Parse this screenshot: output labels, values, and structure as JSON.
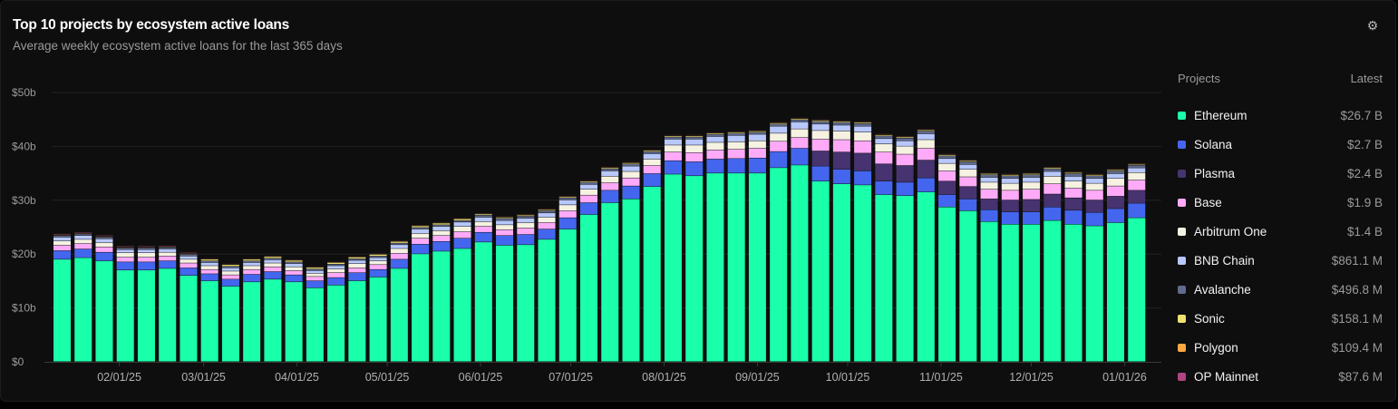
{
  "header": {
    "title": "Top 10 projects by ecosystem active loans",
    "subtitle": "Average weekly ecosystem active loans for the last 365 days",
    "settings_icon": "gear-icon"
  },
  "legend": {
    "col_projects": "Projects",
    "col_latest": "Latest",
    "items": [
      {
        "name": "Ethereum",
        "latest": "$26.7 B",
        "color": "#1affaa"
      },
      {
        "name": "Solana",
        "latest": "$2.7 B",
        "color": "#4466ee"
      },
      {
        "name": "Plasma",
        "latest": "$2.4 B",
        "color": "#46336f"
      },
      {
        "name": "Base",
        "latest": "$1.9 B",
        "color": "#ffaaf8"
      },
      {
        "name": "Arbitrum One",
        "latest": "$1.4 B",
        "color": "#f5f2e2"
      },
      {
        "name": "BNB Chain",
        "latest": "$861.1 M",
        "color": "#b8c8ff"
      },
      {
        "name": "Avalanche",
        "latest": "$496.8 M",
        "color": "#5f6b8e"
      },
      {
        "name": "Sonic",
        "latest": "$158.1 M",
        "color": "#f0e070"
      },
      {
        "name": "Polygon",
        "latest": "$109.4 M",
        "color": "#ffa840"
      },
      {
        "name": "OP Mainnet",
        "latest": "$87.6 M",
        "color": "#b0447e"
      }
    ]
  },
  "chart_data": {
    "type": "bar",
    "stacked": true,
    "title": "Top 10 projects by ecosystem active loans",
    "subtitle": "Average weekly ecosystem active loans for the last 365 days",
    "unit": "USD billions",
    "first_week": "2025-01-13",
    "interval": "weekly",
    "bar_count": 52,
    "ylim": [
      0,
      50
    ],
    "yticks": [
      {
        "v": 0,
        "label": "$0"
      },
      {
        "v": 10,
        "label": "$10b"
      },
      {
        "v": 20,
        "label": "$20b"
      },
      {
        "v": 30,
        "label": "$30b"
      },
      {
        "v": 40,
        "label": "$40b"
      },
      {
        "v": 50,
        "label": "$50b"
      }
    ],
    "xticks": [
      {
        "date": "2025-02-01",
        "label": "02/01/25"
      },
      {
        "date": "2025-03-01",
        "label": "03/01/25"
      },
      {
        "date": "2025-04-01",
        "label": "04/01/25"
      },
      {
        "date": "2025-05-01",
        "label": "05/01/25"
      },
      {
        "date": "2025-06-01",
        "label": "06/01/25"
      },
      {
        "date": "2025-07-01",
        "label": "07/01/25"
      },
      {
        "date": "2025-08-01",
        "label": "08/01/25"
      },
      {
        "date": "2025-09-01",
        "label": "09/01/25"
      },
      {
        "date": "2025-10-01",
        "label": "10/01/25"
      },
      {
        "date": "2025-11-01",
        "label": "11/01/25"
      },
      {
        "date": "2025-12-01",
        "label": "12/01/25"
      },
      {
        "date": "2026-01-01",
        "label": "01/01/26"
      }
    ],
    "grid": true,
    "legend_placement": "right",
    "series": [
      {
        "name": "Ethereum",
        "color": "#1affaa",
        "values": [
          19,
          19.3,
          18.7,
          17,
          17,
          17.3,
          16,
          15,
          14,
          14.8,
          15.3,
          14.8,
          13.7,
          14.2,
          15,
          15.7,
          17.3,
          20,
          20.5,
          21,
          22.2,
          21.6,
          21.7,
          22.7,
          24.6,
          27.3,
          29.5,
          30.2,
          32.5,
          34.8,
          34.5,
          35,
          35,
          35,
          36,
          36.5,
          33.5,
          33,
          32.8,
          31,
          30.8,
          31.5,
          28.7,
          28,
          26,
          25.5,
          25.5,
          26.2,
          25.5,
          25.2,
          25.8,
          26.7
        ]
      },
      {
        "name": "Solana",
        "color": "#4466ee",
        "values": [
          1.6,
          1.6,
          1.6,
          1.5,
          1.5,
          1.4,
          1.4,
          1.3,
          1.3,
          1.4,
          1.4,
          1.3,
          1.3,
          1.4,
          1.5,
          1.4,
          1.7,
          1.8,
          1.8,
          1.9,
          1.8,
          1.8,
          1.9,
          1.9,
          2.1,
          2.2,
          2.3,
          2.4,
          2.4,
          2.5,
          2.6,
          2.6,
          2.7,
          2.8,
          3.0,
          3.1,
          2.8,
          2.7,
          2.6,
          2.5,
          2.5,
          2.6,
          2.3,
          2.2,
          2.2,
          2.3,
          2.3,
          2.5,
          2.6,
          2.5,
          2.6,
          2.7
        ]
      },
      {
        "name": "Plasma",
        "color": "#46336f",
        "values": [
          0,
          0,
          0,
          0,
          0,
          0,
          0,
          0,
          0,
          0,
          0,
          0,
          0,
          0,
          0,
          0,
          0,
          0,
          0,
          0,
          0,
          0,
          0,
          0,
          0,
          0,
          0,
          0,
          0,
          0,
          0,
          0,
          0,
          0,
          0,
          0,
          2.8,
          3.2,
          3.3,
          3.2,
          3.1,
          3.3,
          2.5,
          2.3,
          2.0,
          2.2,
          2.3,
          2.4,
          2.3,
          2.3,
          2.3,
          2.4
        ]
      },
      {
        "name": "Base",
        "color": "#ffaaf8",
        "values": [
          1.0,
          1.0,
          1.0,
          0.9,
          0.9,
          0.9,
          0.9,
          0.8,
          0.8,
          0.9,
          0.9,
          0.8,
          0.8,
          0.9,
          0.9,
          0.9,
          1.1,
          1.1,
          1.1,
          1.2,
          1.1,
          1.1,
          1.2,
          1.2,
          1.3,
          1.4,
          1.4,
          1.5,
          1.5,
          1.6,
          1.7,
          1.7,
          1.7,
          1.8,
          1.9,
          2.0,
          2.2,
          2.3,
          2.3,
          2.2,
          2.1,
          2.2,
          1.9,
          1.8,
          1.8,
          1.8,
          1.9,
          1.9,
          1.8,
          1.8,
          1.9,
          1.9
        ]
      },
      {
        "name": "Arbitrum One",
        "color": "#f5f2e2",
        "values": [
          0.8,
          0.8,
          0.8,
          0.8,
          0.8,
          0.7,
          0.7,
          0.7,
          0.7,
          0.7,
          0.7,
          0.7,
          0.6,
          0.7,
          0.8,
          0.7,
          0.9,
          0.9,
          0.9,
          1.0,
          0.9,
          0.9,
          1.0,
          1.0,
          1.1,
          1.1,
          1.2,
          1.2,
          1.2,
          1.3,
          1.4,
          1.4,
          1.4,
          1.4,
          1.5,
          1.6,
          1.6,
          1.6,
          1.6,
          1.5,
          1.5,
          1.6,
          1.4,
          1.4,
          1.3,
          1.3,
          1.3,
          1.4,
          1.3,
          1.3,
          1.4,
          1.4
        ]
      },
      {
        "name": "BNB Chain",
        "color": "#b8c8ff",
        "values": [
          0.7,
          0.7,
          0.7,
          0.6,
          0.6,
          0.6,
          0.6,
          0.6,
          0.6,
          0.6,
          0.6,
          0.6,
          0.5,
          0.6,
          0.6,
          0.6,
          0.7,
          0.8,
          0.8,
          0.8,
          0.8,
          0.8,
          0.8,
          0.8,
          0.9,
          0.9,
          1.0,
          1.0,
          1.0,
          1.1,
          1.1,
          1.1,
          1.2,
          1.2,
          1.3,
          1.3,
          1.2,
          1.1,
          1.1,
          1.0,
          1.0,
          1.1,
          0.9,
          0.9,
          0.9,
          0.9,
          0.9,
          0.9,
          0.9,
          0.9,
          0.9,
          0.86
        ]
      },
      {
        "name": "Avalanche",
        "color": "#5f6b8e",
        "values": [
          0.3,
          0.3,
          0.3,
          0.3,
          0.3,
          0.3,
          0.3,
          0.3,
          0.3,
          0.3,
          0.3,
          0.3,
          0.3,
          0.3,
          0.3,
          0.3,
          0.3,
          0.3,
          0.3,
          0.3,
          0.4,
          0.4,
          0.4,
          0.4,
          0.4,
          0.4,
          0.4,
          0.4,
          0.4,
          0.4,
          0.4,
          0.4,
          0.4,
          0.4,
          0.4,
          0.4,
          0.5,
          0.5,
          0.5,
          0.5,
          0.5,
          0.5,
          0.5,
          0.5,
          0.5,
          0.5,
          0.5,
          0.5,
          0.5,
          0.5,
          0.5,
          0.5
        ]
      },
      {
        "name": "Sonic",
        "color": "#f0e070",
        "values": [
          0.1,
          0.1,
          0.1,
          0.1,
          0.1,
          0.1,
          0.1,
          0.3,
          0.3,
          0.3,
          0.3,
          0.3,
          0.3,
          0.3,
          0.3,
          0.3,
          0.3,
          0.3,
          0.3,
          0.3,
          0.2,
          0.2,
          0.2,
          0.2,
          0.2,
          0.2,
          0.2,
          0.2,
          0.2,
          0.2,
          0.2,
          0.2,
          0.2,
          0.2,
          0.2,
          0.2,
          0.2,
          0.2,
          0.2,
          0.2,
          0.2,
          0.2,
          0.2,
          0.2,
          0.2,
          0.2,
          0.2,
          0.2,
          0.2,
          0.2,
          0.2,
          0.16
        ]
      },
      {
        "name": "Polygon",
        "color": "#ffa840",
        "values": [
          0.1,
          0.1,
          0.1,
          0.1,
          0.1,
          0.1,
          0.1,
          0.1,
          0.1,
          0.1,
          0.1,
          0.1,
          0.1,
          0.1,
          0.1,
          0.1,
          0.1,
          0.1,
          0.1,
          0.1,
          0.1,
          0.1,
          0.1,
          0.1,
          0.1,
          0.1,
          0.1,
          0.1,
          0.1,
          0.1,
          0.1,
          0.1,
          0.1,
          0.1,
          0.1,
          0.1,
          0.1,
          0.1,
          0.1,
          0.1,
          0.1,
          0.1,
          0.1,
          0.1,
          0.1,
          0.1,
          0.1,
          0.1,
          0.1,
          0.1,
          0.1,
          0.11
        ]
      },
      {
        "name": "OP Mainnet",
        "color": "#b0447e",
        "values": [
          0.15,
          0.15,
          0.15,
          0.15,
          0.15,
          0.15,
          0.15,
          0.1,
          0.1,
          0.1,
          0.1,
          0.1,
          0.1,
          0.1,
          0.1,
          0.1,
          0.1,
          0.1,
          0.1,
          0.1,
          0.1,
          0.1,
          0.1,
          0.1,
          0.1,
          0.1,
          0.1,
          0.1,
          0.1,
          0.1,
          0.1,
          0.1,
          0.1,
          0.1,
          0.1,
          0.1,
          0.1,
          0.1,
          0.1,
          0.1,
          0.1,
          0.1,
          0.1,
          0.1,
          0.1,
          0.1,
          0.1,
          0.1,
          0.1,
          0.1,
          0.1,
          0.09
        ]
      }
    ]
  }
}
